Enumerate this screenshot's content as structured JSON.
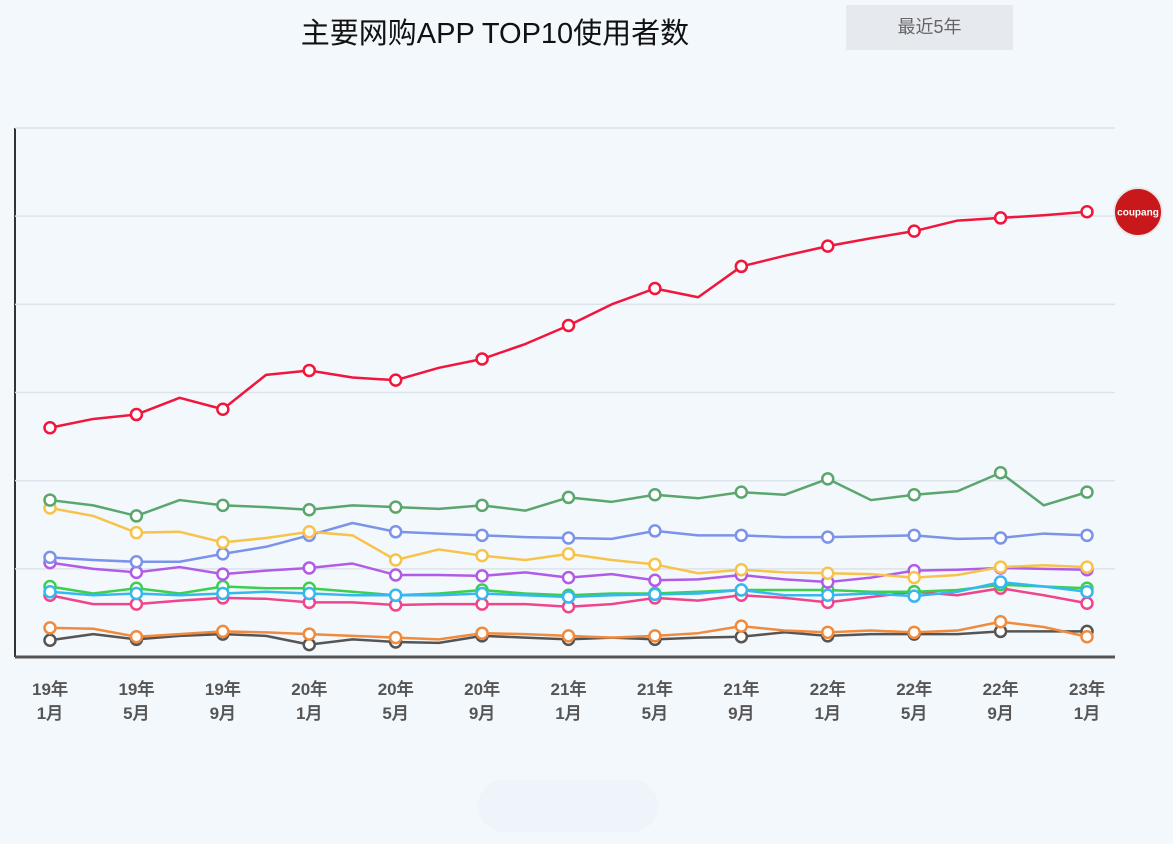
{
  "chart_data": {
    "type": "line",
    "title": "主要网购APP TOP10使用者数",
    "period_button": "最近5年",
    "badge_label": "coupang",
    "categories": [
      "19年\n1月",
      null,
      "19年\n5月",
      null,
      "19年\n9月",
      null,
      "20年\n1月",
      null,
      "20年\n5月",
      null,
      "20年\n9月",
      null,
      "21年\n1月",
      null,
      "21年\n5月",
      null,
      "21年\n9月",
      null,
      "22年\n1月",
      null,
      "22年\n5月",
      null,
      "22年\n9月",
      null,
      "23年\n1月"
    ],
    "ylim": [
      0,
      6
    ],
    "yticks": [
      0,
      1,
      2,
      3,
      4,
      5,
      6
    ],
    "grid": true,
    "series": [
      {
        "color": "#555555",
        "values": [
          0.19,
          0.26,
          0.2,
          0.24,
          0.26,
          0.24,
          0.14,
          0.2,
          0.17,
          0.16,
          0.24,
          0.22,
          0.2,
          0.22,
          0.2,
          0.22,
          0.23,
          0.28,
          0.24,
          0.26,
          0.26,
          0.26,
          0.29,
          0.29,
          0.29
        ]
      },
      {
        "color": "#f08a3c",
        "values": [
          0.33,
          0.32,
          0.23,
          0.26,
          0.29,
          0.28,
          0.26,
          0.24,
          0.22,
          0.2,
          0.27,
          0.26,
          0.24,
          0.22,
          0.24,
          0.27,
          0.35,
          0.3,
          0.28,
          0.3,
          0.28,
          0.3,
          0.4,
          0.34,
          0.23
        ]
      },
      {
        "color": "#f0448c",
        "values": [
          0.7,
          0.6,
          0.6,
          0.64,
          0.67,
          0.66,
          0.62,
          0.62,
          0.59,
          0.6,
          0.6,
          0.6,
          0.57,
          0.6,
          0.67,
          0.64,
          0.7,
          0.67,
          0.62,
          0.68,
          0.74,
          0.7,
          0.78,
          0.7,
          0.61
        ]
      },
      {
        "color": "#3ccf4e",
        "values": [
          0.8,
          0.72,
          0.78,
          0.72,
          0.8,
          0.78,
          0.78,
          0.74,
          0.7,
          0.72,
          0.76,
          0.72,
          0.7,
          0.72,
          0.72,
          0.74,
          0.76,
          0.76,
          0.76,
          0.74,
          0.74,
          0.76,
          0.82,
          0.8,
          0.78
        ]
      },
      {
        "color": "#35b8f0",
        "values": [
          0.74,
          0.7,
          0.72,
          0.7,
          0.72,
          0.74,
          0.72,
          0.7,
          0.7,
          0.7,
          0.72,
          0.7,
          0.68,
          0.7,
          0.71,
          0.72,
          0.76,
          0.7,
          0.7,
          0.72,
          0.69,
          0.74,
          0.85,
          0.8,
          0.74
        ]
      },
      {
        "color": "#b05ce6",
        "values": [
          1.07,
          1.0,
          0.96,
          1.02,
          0.94,
          0.98,
          1.01,
          1.06,
          0.93,
          0.93,
          0.92,
          0.96,
          0.9,
          0.94,
          0.87,
          0.88,
          0.93,
          0.88,
          0.85,
          0.9,
          0.98,
          0.99,
          1.01,
          1.0,
          0.99
        ]
      },
      {
        "color": "#7b93e8",
        "values": [
          1.13,
          1.1,
          1.08,
          1.08,
          1.17,
          1.25,
          1.38,
          1.52,
          1.42,
          1.4,
          1.38,
          1.36,
          1.35,
          1.34,
          1.43,
          1.38,
          1.38,
          1.36,
          1.36,
          1.37,
          1.38,
          1.34,
          1.35,
          1.4,
          1.38
        ]
      },
      {
        "color": "#f7c34a",
        "values": [
          1.69,
          1.6,
          1.41,
          1.42,
          1.3,
          1.35,
          1.42,
          1.38,
          1.1,
          1.22,
          1.15,
          1.1,
          1.17,
          1.1,
          1.05,
          0.95,
          0.99,
          0.96,
          0.95,
          0.94,
          0.9,
          0.93,
          1.02,
          1.04,
          1.02
        ]
      },
      {
        "color": "#5aa66e",
        "values": [
          1.78,
          1.72,
          1.6,
          1.78,
          1.72,
          1.7,
          1.67,
          1.72,
          1.7,
          1.68,
          1.72,
          1.66,
          1.81,
          1.76,
          1.84,
          1.8,
          1.87,
          1.84,
          2.02,
          1.78,
          1.84,
          1.88,
          2.09,
          1.72,
          1.87
        ]
      },
      {
        "name": "Coupang",
        "color": "#f0163c",
        "values": [
          2.6,
          2.7,
          2.75,
          2.94,
          2.81,
          3.2,
          3.25,
          3.17,
          3.14,
          3.28,
          3.38,
          3.55,
          3.76,
          4.0,
          4.18,
          4.08,
          4.43,
          4.55,
          4.66,
          4.75,
          4.83,
          4.95,
          4.98,
          5.01,
          5.05
        ]
      }
    ]
  }
}
